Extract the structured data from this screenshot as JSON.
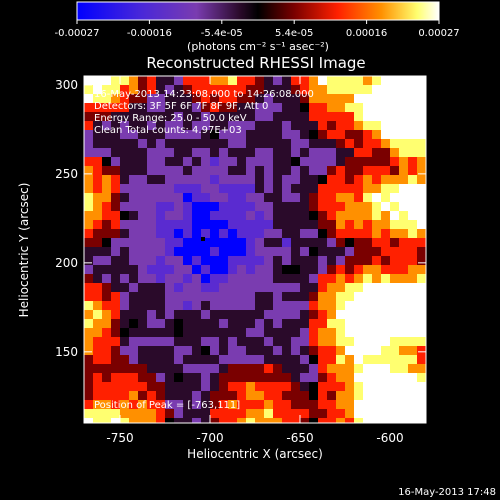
{
  "colorbar": {
    "tick_labels": [
      "-0.00027",
      "-0.00016",
      "-5.4e-05",
      "5.4e-05",
      "0.00016",
      "0.00027"
    ],
    "unit_label": "(photons cm⁻² s⁻¹ asec⁻²)",
    "colors": [
      "#0000ff",
      "#5a2bd0",
      "#7a3cb0",
      "#2a0a2a",
      "#000000",
      "#7a0000",
      "#ff2000",
      "#ff9000",
      "#ffff70",
      "#ffffff"
    ]
  },
  "image": {
    "title": "Reconstructed RHESSI Image",
    "info_lines": [
      "16-May-2013 14:23:08.000 to 14:26:08.000",
      "Detectors: 3F 5F 6F 7F 8F 9F, Att 0",
      "Energy Range: 25.0 - 50.0 keV",
      "Clean    Total counts: 4.97E+03"
    ],
    "peak_label": "Position of Peak = [-763,111]",
    "xlabel": "Heliocentric X (arcsec)",
    "ylabel": "Heliocentric Y (arcsec)",
    "x_ticks": [
      "-750",
      "-700",
      "-650",
      "-600"
    ],
    "y_ticks": [
      "300",
      "250",
      "200",
      "150"
    ],
    "x_range": [
      -770,
      -580
    ],
    "y_range": [
      110,
      305
    ],
    "x_tick_values": [
      -750,
      -700,
      -650,
      -600
    ],
    "y_tick_values": [
      300,
      250,
      200,
      150
    ]
  },
  "footer": {
    "timestamp": "16-May-2013 17:48"
  }
}
